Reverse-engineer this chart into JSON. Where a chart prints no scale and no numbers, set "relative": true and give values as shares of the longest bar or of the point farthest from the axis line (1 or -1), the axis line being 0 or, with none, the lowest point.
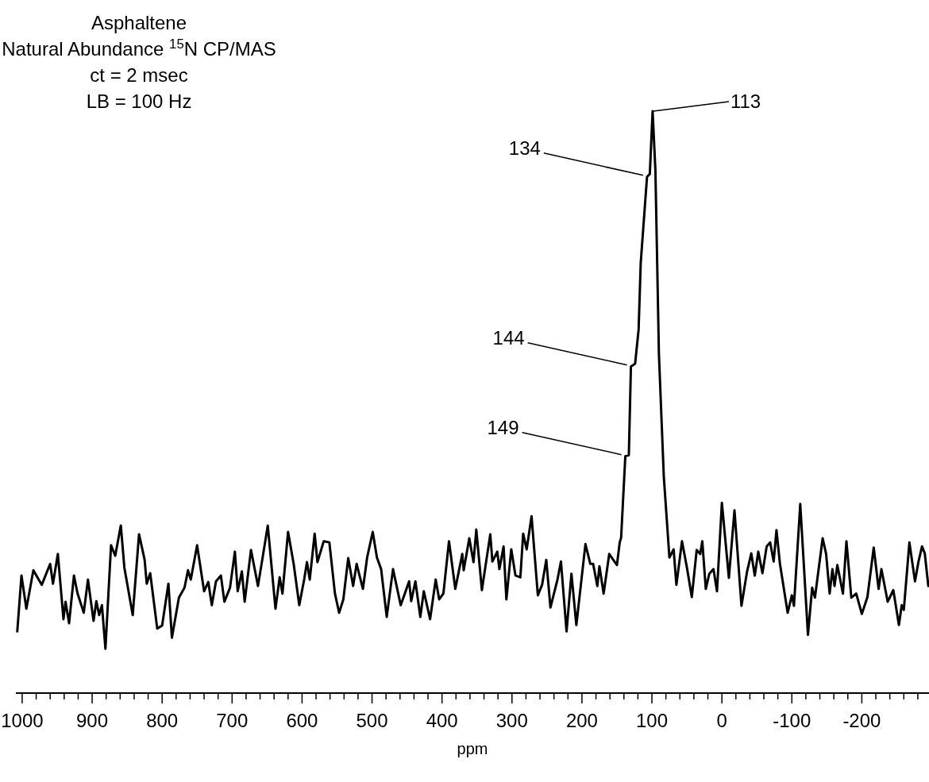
{
  "chart_data": {
    "type": "line",
    "title": "Asphaltene",
    "subtitle": "Natural Abundance $^{15}$N CP/MAS\nct = 2 msec\nLB = 100 Hz",
    "xlabel": "ppm",
    "relative": true,
    "xlim": [
      1009,
      -296
    ],
    "xticks": [
      1000,
      {
        "value": 980,
        "label": null
      },
      {
        "value": 960,
        "label": null
      },
      {
        "value": 940,
        "label": null
      },
      {
        "value": 920,
        "label": null
      },
      900,
      {
        "value": 880,
        "label": null
      },
      {
        "value": 860,
        "label": null
      },
      {
        "value": 840,
        "label": null
      },
      {
        "value": 820,
        "label": null
      },
      800,
      {
        "value": 780,
        "label": null
      },
      {
        "value": 760,
        "label": null
      },
      {
        "value": 740,
        "label": null
      },
      {
        "value": 720,
        "label": null
      },
      700,
      {
        "value": 680,
        "label": null
      },
      {
        "value": 660,
        "label": null
      },
      {
        "value": 640,
        "label": null
      },
      {
        "value": 620,
        "label": null
      },
      600,
      {
        "value": 580,
        "label": null
      },
      {
        "value": 560,
        "label": null
      },
      {
        "value": 540,
        "label": null
      },
      {
        "value": 520,
        "label": null
      },
      500,
      {
        "value": 480,
        "label": null
      },
      {
        "value": 460,
        "label": null
      },
      {
        "value": 440,
        "label": null
      },
      {
        "value": 420,
        "label": null
      },
      400,
      {
        "value": 380,
        "label": null
      },
      {
        "value": 360,
        "label": null
      },
      {
        "value": 340,
        "label": null
      },
      {
        "value": 320,
        "label": null
      },
      300,
      {
        "value": 280,
        "label": null
      },
      {
        "value": 260,
        "label": null
      },
      {
        "value": 240,
        "label": null
      },
      {
        "value": 220,
        "label": null
      },
      200,
      {
        "value": 180,
        "label": null
      },
      {
        "value": 160,
        "label": null
      },
      {
        "value": 140,
        "label": null
      },
      {
        "value": 120,
        "label": null
      },
      100,
      {
        "value": 80,
        "label": null
      },
      {
        "value": 60,
        "label": null
      },
      {
        "value": 40,
        "label": null
      },
      {
        "value": 20,
        "label": null
      },
      0,
      {
        "value": -20,
        "label": null
      },
      {
        "value": -40,
        "label": null
      },
      {
        "value": -60,
        "label": null
      },
      {
        "value": -80,
        "label": null
      },
      -100,
      {
        "value": -120,
        "label": null
      },
      {
        "value": -140,
        "label": null
      },
      {
        "value": -160,
        "label": null
      },
      {
        "value": -180,
        "label": null
      },
      -200,
      {
        "value": -220,
        "label": null
      },
      {
        "value": -240,
        "label": null
      },
      {
        "value": -260,
        "label": null
      },
      {
        "value": -280,
        "label": null
      }
    ],
    "x": [
      1007,
      1001,
      994,
      984,
      972,
      960,
      956,
      949,
      941,
      938,
      933,
      926,
      921,
      912,
      906,
      898,
      894,
      890,
      886,
      881,
      873,
      867,
      859,
      854,
      842,
      833,
      825,
      822,
      817,
      807,
      800,
      791,
      786,
      776,
      768,
      763,
      759,
      750,
      740,
      734,
      729,
      723,
      716,
      711,
      703,
      696,
      692,
      686,
      682,
      673,
      663,
      655,
      649,
      638,
      632,
      628,
      620,
      612,
      604,
      597,
      593,
      589,
      582,
      578,
      569,
      561,
      553,
      547,
      541,
      534,
      527,
      522,
      513,
      507,
      499,
      493,
      487,
      479,
      470,
      459,
      447,
      444,
      438,
      431,
      426,
      417,
      409,
      404,
      398,
      390,
      381,
      371,
      369,
      361,
      355,
      351,
      343,
      331,
      328,
      321,
      318,
      312,
      308,
      301,
      295,
      288,
      284,
      279,
      272,
      263,
      257,
      251,
      245,
      235,
      230,
      222,
      215,
      208,
      195,
      188,
      184,
      178,
      175,
      169,
      161,
      150,
      146,
      144,
      138,
      133,
      130,
      124,
      119,
      116,
      107,
      103,
      99,
      95,
      90,
      83,
      75,
      69,
      65,
      57,
      50,
      43,
      36,
      31,
      28,
      23,
      18,
      12,
      7,
      0,
      -10,
      -18,
      -28,
      -36,
      -42,
      -47,
      -52,
      -58,
      -64,
      -69,
      -74,
      -78,
      -83,
      -94,
      -100,
      -103,
      -112,
      -123,
      -129,
      -133,
      -144,
      -149,
      -154,
      -158,
      -161,
      -165,
      -173,
      -178,
      -185,
      -192,
      -200,
      -208,
      -217,
      -224,
      -228,
      -237,
      -245,
      -253,
      -257,
      -260,
      -268,
      -276,
      -281,
      -286,
      -290,
      -295
    ],
    "series": [
      {
        "color": "#000000",
        "values": [
          0.106,
          0.202,
          0.145,
          0.211,
          0.186,
          0.222,
          0.188,
          0.239,
          0.127,
          0.157,
          0.12,
          0.202,
          0.172,
          0.138,
          0.195,
          0.124,
          0.158,
          0.134,
          0.151,
          0.076,
          0.254,
          0.236,
          0.288,
          0.216,
          0.134,
          0.273,
          0.229,
          0.188,
          0.206,
          0.111,
          0.116,
          0.188,
          0.095,
          0.164,
          0.181,
          0.211,
          0.195,
          0.254,
          0.175,
          0.191,
          0.151,
          0.192,
          0.202,
          0.157,
          0.181,
          0.243,
          0.175,
          0.209,
          0.157,
          0.246,
          0.184,
          0.243,
          0.288,
          0.145,
          0.199,
          0.171,
          0.277,
          0.222,
          0.151,
          0.195,
          0.225,
          0.195,
          0.274,
          0.225,
          0.261,
          0.259,
          0.171,
          0.138,
          0.161,
          0.232,
          0.184,
          0.222,
          0.179,
          0.233,
          0.277,
          0.233,
          0.213,
          0.131,
          0.213,
          0.151,
          0.192,
          0.158,
          0.192,
          0.131,
          0.175,
          0.127,
          0.195,
          0.161,
          0.171,
          0.261,
          0.179,
          0.239,
          0.211,
          0.266,
          0.225,
          0.281,
          0.177,
          0.273,
          0.226,
          0.243,
          0.213,
          0.252,
          0.161,
          0.247,
          0.202,
          0.199,
          0.274,
          0.247,
          0.304,
          0.168,
          0.186,
          0.229,
          0.147,
          0.195,
          0.226,
          0.106,
          0.205,
          0.117,
          0.256,
          0.222,
          0.222,
          0.184,
          0.218,
          0.171,
          0.239,
          0.22,
          0.259,
          0.267,
          0.407,
          0.409,
          0.561,
          0.566,
          0.625,
          0.739,
          0.887,
          0.892,
          1.0,
          0.898,
          0.583,
          0.372,
          0.233,
          0.247,
          0.186,
          0.261,
          0.216,
          0.165,
          0.246,
          0.239,
          0.261,
          0.179,
          0.205,
          0.213,
          0.175,
          0.327,
          0.198,
          0.314,
          0.15,
          0.209,
          0.24,
          0.202,
          0.243,
          0.206,
          0.252,
          0.259,
          0.226,
          0.28,
          0.222,
          0.138,
          0.168,
          0.15,
          0.325,
          0.1,
          0.181,
          0.164,
          0.266,
          0.239,
          0.171,
          0.213,
          0.184,
          0.22,
          0.171,
          0.261,
          0.164,
          0.171,
          0.136,
          0.165,
          0.25,
          0.179,
          0.213,
          0.157,
          0.177,
          0.117,
          0.151,
          0.143,
          0.259,
          0.192,
          0.226,
          0.252,
          0.24,
          0.184
        ]
      }
    ],
    "annotations": [
      {
        "text": "113",
        "x": 99,
        "y": 1.0
      },
      {
        "text": "134",
        "x": 107,
        "y": 0.887
      },
      {
        "text": "144",
        "x": 130,
        "y": 0.561
      },
      {
        "text": "149",
        "x": 138,
        "y": 0.407
      }
    ],
    "line_style": "solid",
    "marker": "none",
    "grid": false
  }
}
